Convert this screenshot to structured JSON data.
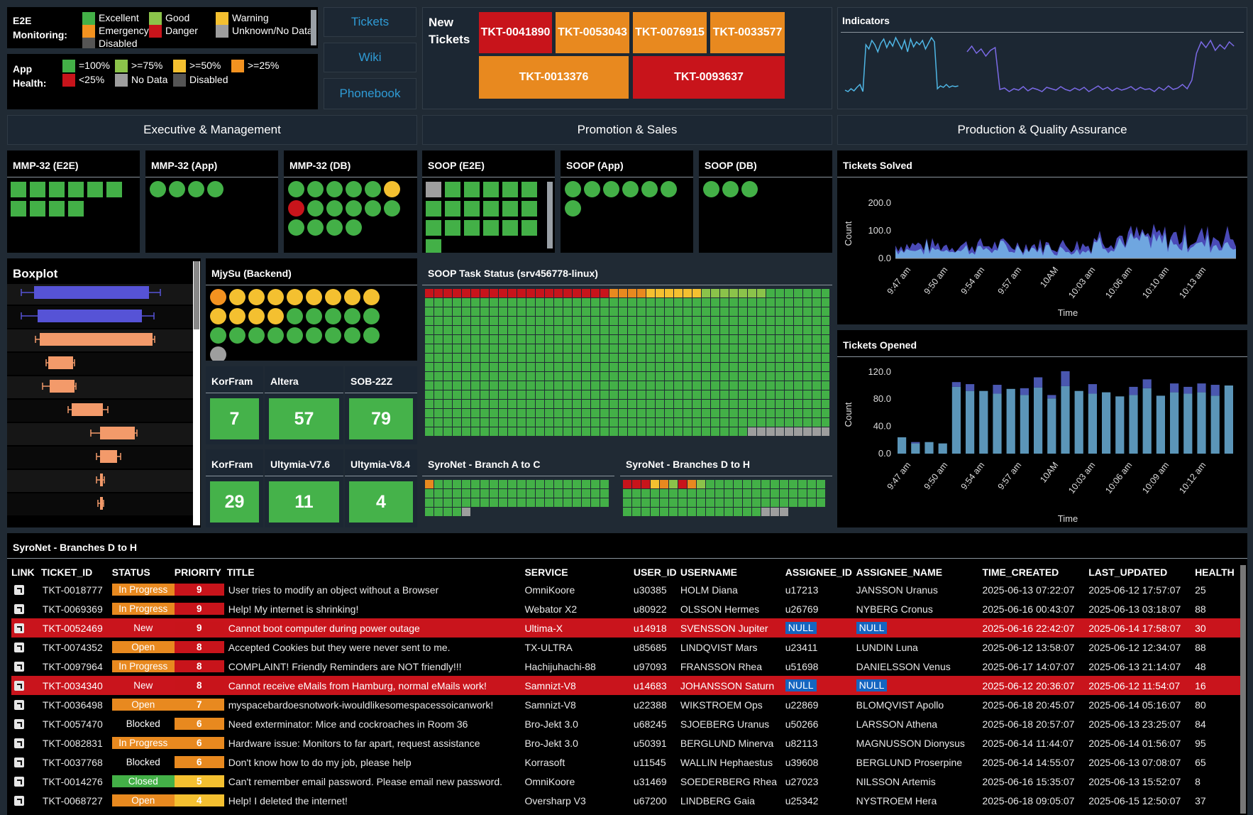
{
  "e2e_legend": {
    "label": "E2E\nMonitoring:",
    "items": [
      {
        "label": "Excellent",
        "color": "#43b047"
      },
      {
        "label": "Good",
        "color": "#8bc34a"
      },
      {
        "label": "Warning",
        "color": "#f4c030"
      },
      {
        "label": "Emergency",
        "color": "#f39220"
      },
      {
        "label": "Danger",
        "color": "#c8141b"
      },
      {
        "label": "Unknown/No Data",
        "color": "#9e9e9e"
      },
      {
        "label": "Disabled",
        "color": "#555555"
      }
    ]
  },
  "app_legend": {
    "label": "App\nHealth:",
    "items": [
      {
        "label": "=100%",
        "color": "#43b047"
      },
      {
        "label": ">=75%",
        "color": "#8bc34a"
      },
      {
        "label": ">=50%",
        "color": "#f4c030"
      },
      {
        "label": ">=25%",
        "color": "#f39220"
      },
      {
        "label": "<25%",
        "color": "#c8141b"
      },
      {
        "label": "No Data",
        "color": "#9e9e9e"
      },
      {
        "label": "Disabled",
        "color": "#555555"
      }
    ]
  },
  "nav": {
    "tickets": "Tickets",
    "wiki": "Wiki",
    "phonebook": "Phonebook"
  },
  "new_tickets": {
    "label": "New\nTickets",
    "tickets": [
      {
        "id": "TKT-0041890",
        "color": "#c8141b"
      },
      {
        "id": "TKT-0053043",
        "color": "#e8891f"
      },
      {
        "id": "TKT-0076915",
        "color": "#e8891f"
      },
      {
        "id": "TKT-0033577",
        "color": "#e8891f"
      },
      {
        "id": "TKT-0013376",
        "color": "#e8891f"
      },
      {
        "id": "TKT-0093637",
        "color": "#c8141b"
      }
    ]
  },
  "indicators": {
    "title": "Indicators"
  },
  "sections": {
    "exec": "Executive & Management",
    "promo": "Promotion & Sales",
    "prod": "Production & Quality Assurance"
  },
  "panels": {
    "mmp_e2e": {
      "title": "MMP-32 (E2E)",
      "squares": [
        "#43b047",
        "#43b047",
        "#43b047",
        "#43b047",
        "#43b047",
        "#43b047",
        "#43b047",
        "#43b047",
        "#43b047",
        "#43b047"
      ]
    },
    "mmp_app": {
      "title": "MMP-32 (App)",
      "dots": [
        "#43b047",
        "#43b047",
        "#43b047",
        "#43b047"
      ]
    },
    "mmp_db": {
      "title": "MMP-32 (DB)",
      "dots": [
        "#43b047",
        "#43b047",
        "#43b047",
        "#43b047",
        "#43b047",
        "#f4c030",
        "#c8141b",
        "#43b047",
        "#43b047",
        "#43b047",
        "#43b047",
        "#43b047",
        "#43b047",
        "#43b047",
        "#43b047",
        "#43b047"
      ]
    },
    "soop_e2e": {
      "title": "SOOP (E2E)",
      "squares": [
        "#9e9e9e",
        "#43b047",
        "#43b047",
        "#43b047",
        "#43b047",
        "#43b047",
        "#43b047",
        "#43b047",
        "#43b047",
        "#43b047",
        "#43b047",
        "#43b047",
        "#43b047",
        "#43b047",
        "#43b047",
        "#43b047",
        "#43b047",
        "#43b047",
        "#43b047"
      ]
    },
    "soop_app": {
      "title": "SOOP (App)",
      "dots": [
        "#43b047",
        "#43b047",
        "#43b047",
        "#43b047",
        "#43b047",
        "#43b047",
        "#43b047"
      ]
    },
    "soop_db": {
      "title": "SOOP (DB)",
      "dots": [
        "#43b047",
        "#43b047",
        "#43b047"
      ]
    },
    "boxplot": {
      "title": "Boxplot"
    },
    "mijysu": {
      "title": "MjySu (Backend)",
      "dots": [
        "#f39220",
        "#f4c030",
        "#f4c030",
        "#f4c030",
        "#f4c030",
        "#f4c030",
        "#f4c030",
        "#f4c030",
        "#f4c030",
        "#f4c030",
        "#f4c030",
        "#f4c030",
        "#f4c030",
        "#43b047",
        "#43b047",
        "#43b047",
        "#43b047",
        "#43b047",
        "#43b047",
        "#43b047",
        "#43b047",
        "#43b047",
        "#43b047",
        "#43b047",
        "#43b047",
        "#43b047",
        "#43b047",
        "#9e9e9e"
      ]
    },
    "soop_task": {
      "title": "SOOP Task Status (srv456778-linux)"
    },
    "syronet_ac": {
      "title": "SyroNet - Branch A to C"
    },
    "syronet_dh": {
      "title": "SyroNet - Branches D to H"
    }
  },
  "kpis": [
    {
      "title": "KorFram",
      "value": "7"
    },
    {
      "title": "Altera",
      "value": "57"
    },
    {
      "title": "SOB-22Z",
      "value": "79"
    },
    {
      "title": "KorFram",
      "value": "29"
    },
    {
      "title": "Ultymia-V7.6",
      "value": "11"
    },
    {
      "title": "Ultymia-V8.4",
      "value": "4"
    }
  ],
  "charts": {
    "solved": {
      "title": "Tickets Solved",
      "ylabel": "Count",
      "xlabel": "Time",
      "yticks": [
        "200.0",
        "100.0",
        "0.0"
      ],
      "xticks": [
        "9:47 am",
        "9:50 am",
        "9:54 am",
        "9:57 am",
        "10AM",
        "10:03 am",
        "10:06 am",
        "10:10 am",
        "10:13 am"
      ]
    },
    "opened": {
      "title": "Tickets Opened",
      "ylabel": "Count",
      "xlabel": "Time",
      "yticks": [
        "120.0",
        "80.0",
        "40.0",
        "0.0"
      ],
      "xticks": [
        "9:47 am",
        "9:50 am",
        "9:54 am",
        "9:57 am",
        "10AM",
        "10:03 am",
        "10:06 am",
        "10:09 am",
        "10:12 am"
      ]
    }
  },
  "chart_data": [
    {
      "type": "bar",
      "title": "Tickets Opened",
      "xlabel": "Time",
      "ylabel": "Count",
      "ylim": [
        0,
        125
      ],
      "stacked": true,
      "series": [
        {
          "values": [
            24,
            15,
            17,
            15,
            98,
            92,
            92,
            88,
            95,
            86,
            97,
            81,
            99,
            92,
            88,
            90,
            84,
            86,
            96,
            85,
            90,
            88,
            90,
            85,
            100
          ]
        },
        {
          "values": [
            0,
            2,
            0,
            0,
            7,
            10,
            0,
            13,
            0,
            10,
            15,
            5,
            22,
            0,
            14,
            0,
            0,
            12,
            13,
            0,
            13,
            10,
            13,
            16,
            0
          ]
        }
      ]
    },
    {
      "type": "area",
      "title": "Tickets Solved",
      "xlabel": "Time",
      "ylabel": "Count",
      "ylim": [
        0,
        220
      ]
    }
  ],
  "table": {
    "title": "SyroNet - Branches D to H",
    "columns": [
      "LINK",
      "TICKET_ID",
      "STATUS",
      "PRIORITY",
      "TITLE",
      "SERVICE",
      "USER_ID",
      "USERNAME",
      "ASSIGNEE_ID",
      "ASSIGNEE_NAME",
      "TIME_CREATED",
      "LAST_UPDATED",
      "HEALTH"
    ],
    "rows": [
      {
        "id": "TKT-0018777",
        "status": "In Progress",
        "scol": "#e8891f",
        "prio": "9",
        "pcol": "#c8141b",
        "title": "User tries to modify an object without a Browser",
        "service": "OmniKoore",
        "uid": "u30385",
        "uname": "HOLM Diana",
        "aid": "u17213",
        "aname": "JANSSON Uranus",
        "created": "2025-06-13 07:22:07",
        "updated": "2025-06-12 17:57:07",
        "health": "25",
        "red": false
      },
      {
        "id": "TKT-0069369",
        "status": "In Progress",
        "scol": "#e8891f",
        "prio": "9",
        "pcol": "#c8141b",
        "title": "Help! My internet is shrinking!",
        "service": "Webator X2",
        "uid": "u80922",
        "uname": "OLSSON Hermes",
        "aid": "u26769",
        "aname": "NYBERG Cronus",
        "created": "2025-06-16 00:43:07",
        "updated": "2025-06-13 03:18:07",
        "health": "88",
        "red": false
      },
      {
        "id": "TKT-0052469",
        "status": "New",
        "scol": "",
        "prio": "9",
        "pcol": "#c8141b",
        "title": "Cannot boot computer during power outage",
        "service": "Ultima-X",
        "uid": "u14918",
        "uname": "SVENSSON Jupiter",
        "aid": "NULL",
        "aname": "NULL",
        "created": "2025-06-16 22:42:07",
        "updated": "2025-06-14 17:58:07",
        "health": "30",
        "red": true
      },
      {
        "id": "TKT-0074352",
        "status": "Open",
        "scol": "#e8891f",
        "prio": "8",
        "pcol": "#c8141b",
        "title": "Accepted Cookies but they were never sent to me.",
        "service": "TX-ULTRA",
        "uid": "u85685",
        "uname": "LINDQVIST Mars",
        "aid": "u23411",
        "aname": "LUNDIN Luna",
        "created": "2025-06-12 13:58:07",
        "updated": "2025-06-12 12:34:07",
        "health": "88",
        "red": false
      },
      {
        "id": "TKT-0097964",
        "status": "In Progress",
        "scol": "#e8891f",
        "prio": "8",
        "pcol": "#c8141b",
        "title": "COMPLAINT! Friendly Reminders are NOT friendly!!!",
        "service": "Hachijuhachi-88",
        "uid": "u97093",
        "uname": "FRANSSON Rhea",
        "aid": "u51698",
        "aname": "DANIELSSON Venus",
        "created": "2025-06-17 14:07:07",
        "updated": "2025-06-13 21:14:07",
        "health": "48",
        "red": false
      },
      {
        "id": "TKT-0034340",
        "status": "New",
        "scol": "",
        "prio": "8",
        "pcol": "#c8141b",
        "title": "Cannot receive eMails from Hamburg, normal eMails work!",
        "service": "Samnizt-V8",
        "uid": "u14683",
        "uname": "JOHANSSON Saturn",
        "aid": "NULL",
        "aname": "NULL",
        "created": "2025-06-12 20:36:07",
        "updated": "2025-06-12 11:54:07",
        "health": "16",
        "red": true
      },
      {
        "id": "TKT-0036498",
        "status": "Open",
        "scol": "#e8891f",
        "prio": "7",
        "pcol": "#e8891f",
        "title": "myspacebardoesnotwork-iwouldlikesomespacessoicanwork!",
        "service": "Samnizt-V8",
        "uid": "u22388",
        "uname": "WIKSTROEM Ops",
        "aid": "u22869",
        "aname": "BLOMQVIST Apollo",
        "created": "2025-06-18 20:45:07",
        "updated": "2025-06-14 05:16:07",
        "health": "80",
        "red": false
      },
      {
        "id": "TKT-0057470",
        "status": "Blocked",
        "scol": "",
        "prio": "6",
        "pcol": "#e8891f",
        "title": "Need exterminator: Mice and cockroaches in Room 36",
        "service": "Bro-Jekt 3.0",
        "uid": "u68245",
        "uname": "SJOEBERG Uranus",
        "aid": "u50266",
        "aname": "LARSSON Athena",
        "created": "2025-06-18 20:57:07",
        "updated": "2025-06-13 23:25:07",
        "health": "84",
        "red": false
      },
      {
        "id": "TKT-0082831",
        "status": "In Progress",
        "scol": "#e8891f",
        "prio": "6",
        "pcol": "#e8891f",
        "title": "Hardware issue: Monitors to far apart, request assistance",
        "service": "Bro-Jekt 3.0",
        "uid": "u50391",
        "uname": "BERGLUND Minerva",
        "aid": "u82113",
        "aname": "MAGNUSSON Dionysus",
        "created": "2025-06-14 11:44:07",
        "updated": "2025-06-14 01:56:07",
        "health": "95",
        "red": false
      },
      {
        "id": "TKT-0037768",
        "status": "Blocked",
        "scol": "",
        "prio": "6",
        "pcol": "#e8891f",
        "title": "Don't know how to do my job, please help",
        "service": "Korrasoft",
        "uid": "u11545",
        "uname": "WALLIN Hephaestus",
        "aid": "u39608",
        "aname": "BERGLUND Proserpine",
        "created": "2025-06-14 14:55:07",
        "updated": "2025-06-13 07:08:07",
        "health": "65",
        "red": false
      },
      {
        "id": "TKT-0014276",
        "status": "Closed",
        "scol": "#43b047",
        "prio": "5",
        "pcol": "#f4c030",
        "title": "Can't remember email password. Please email new password.",
        "service": "OmniKoore",
        "uid": "u31469",
        "uname": "SOEDERBERG Rhea",
        "aid": "u27023",
        "aname": "NILSSON Artemis",
        "created": "2025-06-16 15:35:07",
        "updated": "2025-06-13 15:52:07",
        "health": "8",
        "red": false
      },
      {
        "id": "TKT-0068727",
        "status": "Open",
        "scol": "#e8891f",
        "prio": "4",
        "pcol": "#f4c030",
        "title": "Help! I deleted the internet!",
        "service": "Oversharp V3",
        "uid": "u67200",
        "uname": "LINDBERG Gaia",
        "aid": "u25342",
        "aname": "NYSTROEM Hera",
        "created": "2025-06-18 09:05:07",
        "updated": "2025-06-15 12:50:07",
        "health": "37",
        "red": false
      }
    ]
  }
}
